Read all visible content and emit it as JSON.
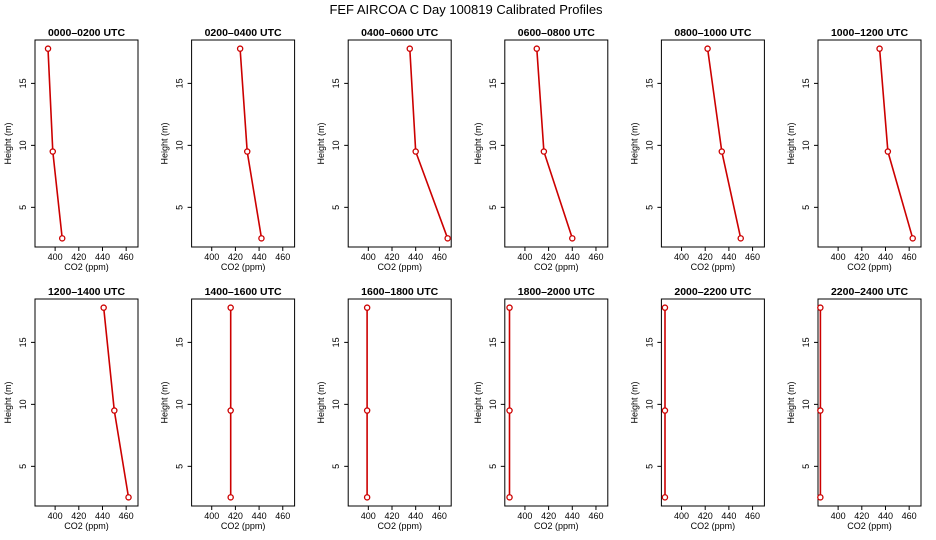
{
  "page_title": "FEF AIRCOA C  Day 100819  Calibrated Profiles",
  "colors": {
    "profile_line": "#cc0000",
    "axis": "#000000",
    "background": "#ffffff"
  },
  "chart_data": {
    "type": "line",
    "orientation": "profile",
    "title": "FEF AIRCOA C  Day 100819  Calibrated Profiles",
    "xlabel": "CO2 (ppm)",
    "ylabel": "Height (m)",
    "xlim": [
      383,
      470
    ],
    "ylim": [
      1.8,
      18.5
    ],
    "xticks": [
      400,
      420,
      440,
      460
    ],
    "yticks": [
      5,
      10,
      15
    ],
    "panels": [
      {
        "title": "0000–0200 UTC",
        "x": [
          406,
          398,
          394
        ],
        "y": [
          2.5,
          9.5,
          17.8
        ]
      },
      {
        "title": "0200–0400 UTC",
        "x": [
          442,
          430,
          424
        ],
        "y": [
          2.5,
          9.5,
          17.8
        ]
      },
      {
        "title": "0400–0600 UTC",
        "x": [
          467,
          440,
          435
        ],
        "y": [
          2.5,
          9.5,
          17.8
        ]
      },
      {
        "title": "0600–0800 UTC",
        "x": [
          440,
          416,
          410
        ],
        "y": [
          2.5,
          9.5,
          17.8
        ]
      },
      {
        "title": "0800–1000 UTC",
        "x": [
          450,
          434,
          422
        ],
        "y": [
          2.5,
          9.5,
          17.8
        ]
      },
      {
        "title": "1000–1200 UTC",
        "x": [
          463,
          442,
          435
        ],
        "y": [
          2.5,
          9.5,
          17.8
        ]
      },
      {
        "title": "1200–1400 UTC",
        "x": [
          462,
          450,
          441
        ],
        "y": [
          2.5,
          9.5,
          17.8
        ]
      },
      {
        "title": "1400–1600 UTC",
        "x": [
          416,
          416,
          416
        ],
        "y": [
          2.5,
          9.5,
          17.8
        ]
      },
      {
        "title": "1600–1800 UTC",
        "x": [
          399,
          399,
          399
        ],
        "y": [
          2.5,
          9.5,
          17.8
        ]
      },
      {
        "title": "1800–2000 UTC",
        "x": [
          387,
          387,
          387
        ],
        "y": [
          2.5,
          9.5,
          17.8
        ]
      },
      {
        "title": "2000–2200 UTC",
        "x": [
          386,
          386,
          386
        ],
        "y": [
          2.5,
          9.5,
          17.8
        ]
      },
      {
        "title": "2200–2400 UTC",
        "x": [
          385,
          385,
          385
        ],
        "y": [
          2.5,
          9.5,
          17.8
        ]
      }
    ]
  }
}
